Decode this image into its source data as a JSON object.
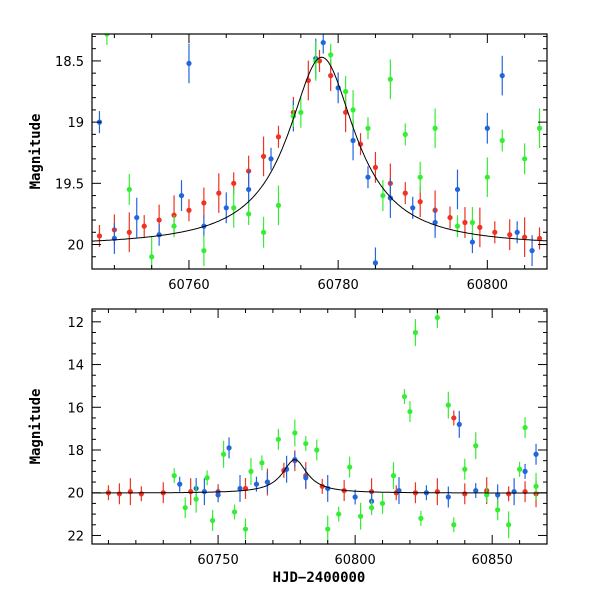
{
  "chart_data": [
    {
      "type": "scatter",
      "name": "zoom",
      "title": "",
      "xlabel": "",
      "ylabel": "Magnitude",
      "xlim": [
        60747,
        60808
      ],
      "ylim": [
        20.2,
        18.28
      ],
      "y_inverted": true,
      "x_ticks": [
        60760,
        60780,
        60800
      ],
      "y_ticks": [
        18.5,
        19,
        19.5,
        20
      ],
      "grid": false,
      "series": [
        {
          "color_name": "red",
          "color": "#ee3322",
          "points": [
            [
              60748,
              19.93
            ],
            [
              60750,
              19.88
            ],
            [
              60752,
              19.9
            ],
            [
              60754,
              19.85
            ],
            [
              60756,
              19.8
            ],
            [
              60758,
              19.76
            ],
            [
              60760,
              19.72
            ],
            [
              60762,
              19.66
            ],
            [
              60764,
              19.58
            ],
            [
              60766,
              19.5
            ],
            [
              60768,
              19.4
            ],
            [
              60770,
              19.28
            ],
            [
              60772,
              19.12
            ],
            [
              60774,
              18.92
            ],
            [
              60776,
              18.66
            ],
            [
              60777.5,
              18.5
            ],
            [
              60779,
              18.62
            ],
            [
              60781,
              18.92
            ],
            [
              60783,
              19.18
            ],
            [
              60785,
              19.37
            ],
            [
              60787,
              19.5
            ],
            [
              60789,
              19.58
            ],
            [
              60791,
              19.65
            ],
            [
              60793,
              19.72
            ],
            [
              60795,
              19.78
            ],
            [
              60797,
              19.82
            ],
            [
              60799,
              19.86
            ],
            [
              60801,
              19.9
            ],
            [
              60803,
              19.92
            ],
            [
              60805,
              19.94
            ],
            [
              60807,
              19.95
            ]
          ]
        },
        {
          "color_name": "blue",
          "color": "#2266dd",
          "points": [
            [
              60748,
              19.0
            ],
            [
              60750,
              19.95
            ],
            [
              60753,
              19.78
            ],
            [
              60756,
              19.92
            ],
            [
              60759,
              19.6
            ],
            [
              60760,
              18.52
            ],
            [
              60762,
              19.85
            ],
            [
              60765,
              19.7
            ],
            [
              60768,
              19.55
            ],
            [
              60771,
              19.3
            ],
            [
              60774,
              18.95
            ],
            [
              60777,
              18.48
            ],
            [
              60778,
              18.35
            ],
            [
              60780,
              18.72
            ],
            [
              60782,
              19.15
            ],
            [
              60784,
              19.45
            ],
            [
              60785,
              20.15
            ],
            [
              60787,
              19.62
            ],
            [
              60790,
              19.7
            ],
            [
              60793,
              19.82
            ],
            [
              60796,
              19.55
            ],
            [
              60798,
              19.98
            ],
            [
              60800,
              19.05
            ],
            [
              60802,
              18.62
            ],
            [
              60804,
              19.9
            ],
            [
              60806,
              20.05
            ]
          ]
        },
        {
          "color_name": "green",
          "color": "#33ee33",
          "points": [
            [
              60749,
              18.28
            ],
            [
              60752,
              19.55
            ],
            [
              60755,
              20.1
            ],
            [
              60758,
              19.85
            ],
            [
              60762,
              20.05
            ],
            [
              60766,
              19.7
            ],
            [
              60768,
              19.75
            ],
            [
              60770,
              19.9
            ],
            [
              60772,
              19.68
            ],
            [
              60774,
              18.95
            ],
            [
              60775,
              18.92
            ],
            [
              60777,
              18.5
            ],
            [
              60779,
              18.45
            ],
            [
              60781,
              18.75
            ],
            [
              60782,
              18.9
            ],
            [
              60784,
              19.05
            ],
            [
              60786,
              19.6
            ],
            [
              60787,
              18.65
            ],
            [
              60789,
              19.1
            ],
            [
              60791,
              19.45
            ],
            [
              60793,
              19.05
            ],
            [
              60796,
              19.85
            ],
            [
              60798,
              19.82
            ],
            [
              60800,
              19.45
            ],
            [
              60802,
              19.15
            ],
            [
              60805,
              19.3
            ],
            [
              60807,
              19.05
            ]
          ]
        }
      ],
      "model_curve": {
        "color": "#000000",
        "t0": 60777.8,
        "peak": 18.47,
        "baseline": 20.02
      }
    },
    {
      "type": "scatter",
      "name": "full",
      "title": "",
      "xlabel": "HJD−2400000",
      "ylabel": "Magnitude",
      "xlim": [
        60704,
        60870
      ],
      "ylim": [
        22.4,
        11.4
      ],
      "y_inverted": true,
      "x_ticks": [
        60750,
        60800,
        60850
      ],
      "y_ticks": [
        12,
        14,
        16,
        18,
        20,
        22
      ],
      "grid": false,
      "series": [
        {
          "color_name": "red",
          "color": "#ee3322",
          "points": [
            [
              60710,
              20.0
            ],
            [
              60714,
              20.05
            ],
            [
              60718,
              19.95
            ],
            [
              60722,
              20.05
            ],
            [
              60730,
              20.0
            ],
            [
              60740,
              19.95
            ],
            [
              60750,
              19.95
            ],
            [
              60760,
              19.8
            ],
            [
              60768,
              19.5
            ],
            [
              60774,
              18.95
            ],
            [
              60778,
              18.5
            ],
            [
              60782,
              19.2
            ],
            [
              60788,
              19.7
            ],
            [
              60796,
              19.9
            ],
            [
              60806,
              19.95
            ],
            [
              60815,
              20.0
            ],
            [
              60822,
              20.0
            ],
            [
              60830,
              19.95
            ],
            [
              60836,
              16.5
            ],
            [
              60840,
              20.05
            ],
            [
              60848,
              19.9
            ],
            [
              60856,
              20.05
            ],
            [
              60862,
              19.95
            ],
            [
              60866,
              20.05
            ]
          ]
        },
        {
          "color_name": "blue",
          "color": "#2266dd",
          "points": [
            [
              60736,
              19.6
            ],
            [
              60742,
              19.8
            ],
            [
              60745,
              19.95
            ],
            [
              60750,
              20.1
            ],
            [
              60754,
              17.9
            ],
            [
              60758,
              19.8
            ],
            [
              60764,
              19.6
            ],
            [
              60768,
              19.5
            ],
            [
              60775,
              18.9
            ],
            [
              60778,
              18.45
            ],
            [
              60782,
              19.3
            ],
            [
              60790,
              19.8
            ],
            [
              60800,
              20.2
            ],
            [
              60806,
              20.4
            ],
            [
              60816,
              19.9
            ],
            [
              60826,
              20.0
            ],
            [
              60834,
              20.2
            ],
            [
              60838,
              16.8
            ],
            [
              60844,
              19.9
            ],
            [
              60852,
              20.1
            ],
            [
              60858,
              19.95
            ],
            [
              60862,
              19.0
            ],
            [
              60866,
              18.2
            ]
          ]
        },
        {
          "color_name": "green",
          "color": "#33ee33",
          "points": [
            [
              60734,
              19.2
            ],
            [
              60738,
              20.7
            ],
            [
              60742,
              20.3
            ],
            [
              60746,
              19.3
            ],
            [
              60748,
              21.3
            ],
            [
              60752,
              18.2
            ],
            [
              60756,
              20.9
            ],
            [
              60760,
              21.7
            ],
            [
              60762,
              19.0
            ],
            [
              60766,
              18.6
            ],
            [
              60772,
              17.5
            ],
            [
              60778,
              17.2
            ],
            [
              60782,
              17.7
            ],
            [
              60786,
              18.0
            ],
            [
              60790,
              21.7
            ],
            [
              60794,
              21.0
            ],
            [
              60798,
              18.8
            ],
            [
              60802,
              21.1
            ],
            [
              60806,
              20.7
            ],
            [
              60810,
              20.5
            ],
            [
              60814,
              19.2
            ],
            [
              60818,
              15.5
            ],
            [
              60820,
              16.2
            ],
            [
              60822,
              12.5
            ],
            [
              60824,
              21.2
            ],
            [
              60830,
              11.8
            ],
            [
              60834,
              15.9
            ],
            [
              60836,
              21.5
            ],
            [
              60840,
              18.9
            ],
            [
              60844,
              17.8
            ],
            [
              60848,
              20.1
            ],
            [
              60852,
              20.8
            ],
            [
              60856,
              21.5
            ],
            [
              60860,
              18.9
            ],
            [
              60862,
              16.95
            ],
            [
              60866,
              19.7
            ]
          ]
        }
      ],
      "model_curve": {
        "color": "#000000",
        "t0": 60778,
        "peak": 18.45,
        "baseline": 20.02
      }
    }
  ]
}
